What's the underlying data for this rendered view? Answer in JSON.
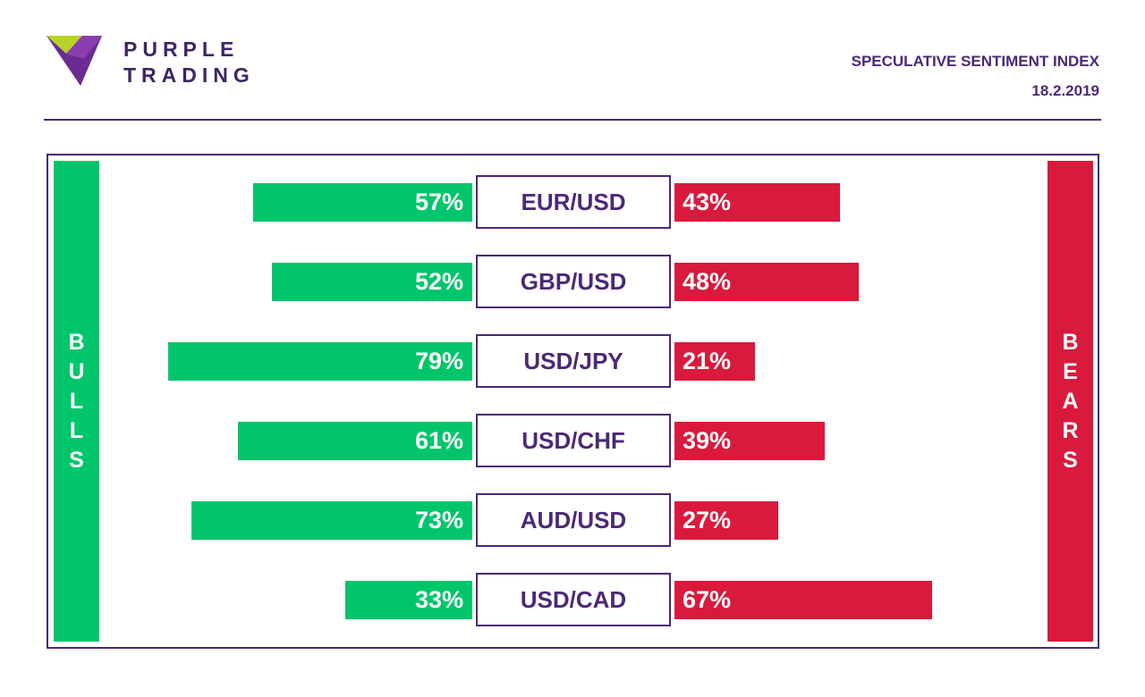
{
  "brand": {
    "line1": "PURPLE",
    "line2": "TRADING"
  },
  "report": {
    "title": "SPECULATIVE SENTIMENT INDEX",
    "date": "18.2.2019"
  },
  "labels": {
    "bulls": "BULLS",
    "bears": "BEARS"
  },
  "colors": {
    "bulls": "#00c56b",
    "bears": "#d91a3c",
    "accent": "#4b2878"
  },
  "chart_data": {
    "type": "bar",
    "orientation": "horizontal-diverging",
    "categories": [
      "EUR/USD",
      "GBP/USD",
      "USD/JPY",
      "USD/CHF",
      "AUD/USD",
      "USD/CAD"
    ],
    "series": [
      {
        "name": "BULLS",
        "values": [
          57,
          52,
          79,
          61,
          73,
          33
        ]
      },
      {
        "name": "BEARS",
        "values": [
          43,
          48,
          21,
          39,
          27,
          67
        ]
      }
    ],
    "value_labels": {
      "bulls": [
        "57%",
        "52%",
        "79%",
        "61%",
        "73%",
        "33%"
      ],
      "bears": [
        "43%",
        "48%",
        "21%",
        "39%",
        "27%",
        "67%"
      ]
    },
    "unit": "%",
    "title": "SPECULATIVE SENTIMENT INDEX",
    "grid": false
  }
}
